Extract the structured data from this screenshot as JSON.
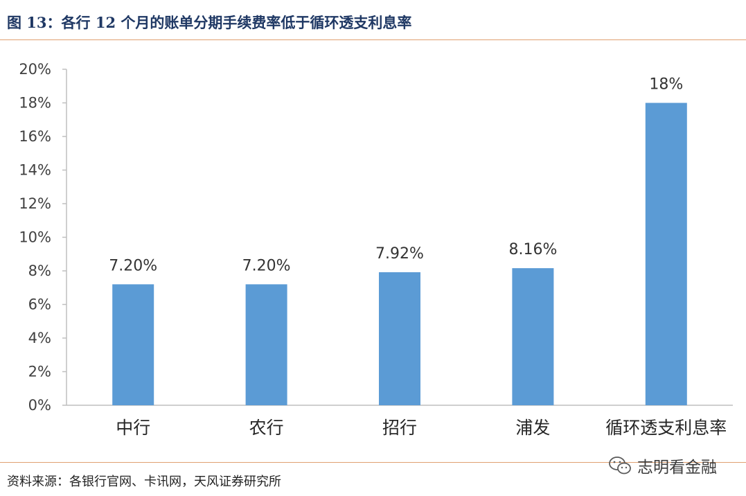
{
  "title": "图 13：各行 12 个月的账单分期手续费率低于循环透支利息率",
  "source": "资料来源：各银行官网、卡讯网，天风证券研究所",
  "watermark": "志明看金融",
  "watermark_icon": "wechat-icon",
  "colors": {
    "bar": "#5b9bd5",
    "rule": "#e0a070",
    "title": "#1f3864"
  },
  "chart_data": {
    "type": "bar",
    "title": "",
    "xlabel": "",
    "ylabel": "",
    "categories": [
      "中行",
      "农行",
      "招行",
      "浦发",
      "循环透支利息率"
    ],
    "values": [
      7.2,
      7.2,
      7.92,
      8.16,
      18
    ],
    "data_labels": [
      "7.20%",
      "7.20%",
      "7.92%",
      "8.16%",
      "18%"
    ],
    "ylim": [
      0,
      20
    ],
    "y_ticks": [
      "0%",
      "2%",
      "4%",
      "6%",
      "8%",
      "10%",
      "12%",
      "14%",
      "16%",
      "18%",
      "20%"
    ],
    "grid": false,
    "legend": "none"
  }
}
